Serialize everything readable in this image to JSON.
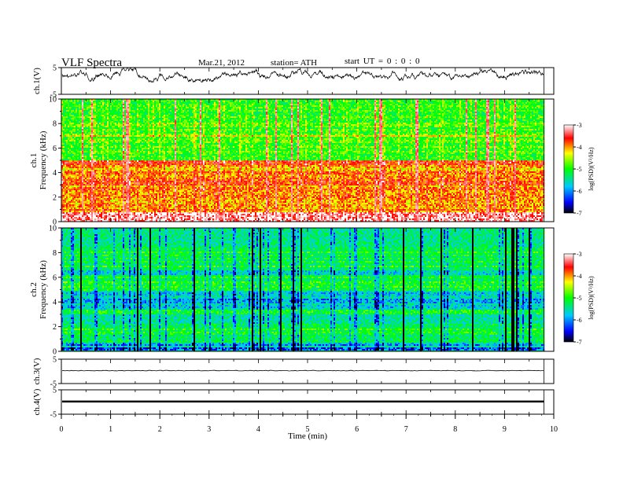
{
  "header": {
    "title": "VLF  Spectra",
    "date": "Mar.21, 2012",
    "station": "station= ATH",
    "start_ut": "start  UT  =   0 : 0 : 0"
  },
  "chart_data": [
    {
      "type": "line",
      "panel": "ch1-waveform",
      "ylabel": "ch.1(V)",
      "ylim": [
        -5,
        5
      ],
      "yticks": [
        -5,
        5
      ],
      "xlim": [
        0,
        10
      ],
      "data_end_min": 9.8
    },
    {
      "type": "heatmap",
      "panel": "ch1-spectrogram",
      "ylabel": "ch.1\nFrequency  (kHz)",
      "ylim": [
        0,
        10
      ],
      "yticks": [
        0,
        2,
        4,
        6,
        8,
        10
      ],
      "xlim": [
        0,
        10
      ],
      "data_end_min": 9.8,
      "colorbar": {
        "label": "log(PSD)(V²/Hz)",
        "range": [
          -7,
          -3
        ],
        "ticks": [
          -3,
          -4,
          -5,
          -6,
          -7
        ]
      }
    },
    {
      "type": "heatmap",
      "panel": "ch2-spectrogram",
      "ylabel": "ch.2\nFrequency  (kHz)",
      "ylim": [
        0,
        10
      ],
      "yticks": [
        0,
        2,
        4,
        6,
        8,
        10
      ],
      "xlim": [
        0,
        10
      ],
      "data_end_min": 9.8,
      "colorbar": {
        "label": "log(PSD)(V²/Hz)",
        "range": [
          -7,
          -3
        ],
        "ticks": [
          -3,
          -4,
          -5,
          -6,
          -7
        ]
      }
    },
    {
      "type": "line",
      "panel": "ch3-waveform",
      "ylabel": "ch.3(V)",
      "ylim": [
        -5,
        5
      ],
      "yticks": [
        -5,
        5
      ],
      "xlim": [
        0,
        10
      ],
      "data_end_min": 9.8
    },
    {
      "type": "line",
      "panel": "ch4-waveform",
      "ylabel": "ch.4(V)",
      "ylim": [
        -5,
        5
      ],
      "yticks": [
        -5,
        5
      ],
      "xlim": [
        0,
        10
      ],
      "data_end_min": 9.8,
      "xlabel": "Time  (min)",
      "xticks": [
        0,
        1,
        2,
        3,
        4,
        5,
        6,
        7,
        8,
        9,
        10
      ]
    }
  ],
  "colors": {
    "palette": [
      "#000000",
      "#0000ff",
      "#00c8ff",
      "#00ff00",
      "#ffff00",
      "#ff0000",
      "#ffffff"
    ]
  }
}
